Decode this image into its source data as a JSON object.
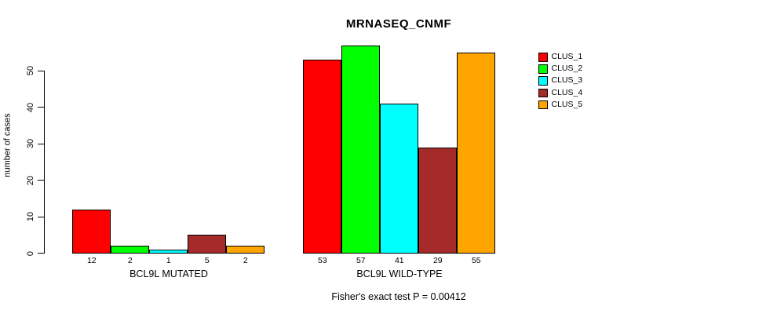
{
  "chart_data": {
    "type": "bar",
    "title": "MRNASEQ_CNMF",
    "ylabel": "number of cases",
    "xlabel": "",
    "yticks": [
      0,
      10,
      20,
      30,
      40,
      50
    ],
    "ylim": [
      0,
      57
    ],
    "grid": false,
    "legend_position": "right",
    "categories": [
      "BCL9L MUTATED",
      "BCL9L WILD-TYPE"
    ],
    "series": [
      {
        "name": "CLUS_1",
        "color": "#FF0000",
        "values": [
          12,
          53
        ]
      },
      {
        "name": "CLUS_2",
        "color": "#00FF00",
        "values": [
          2,
          57
        ]
      },
      {
        "name": "CLUS_3",
        "color": "#00FFFF",
        "values": [
          1,
          41
        ]
      },
      {
        "name": "CLUS_4",
        "color": "#A52A2A",
        "values": [
          5,
          29
        ]
      },
      {
        "name": "CLUS_5",
        "color": "#FFA500",
        "values": [
          2,
          55
        ]
      }
    ],
    "bar_value_labels_shown": true,
    "footnote": "Fisher's exact test P = 0.00412"
  }
}
